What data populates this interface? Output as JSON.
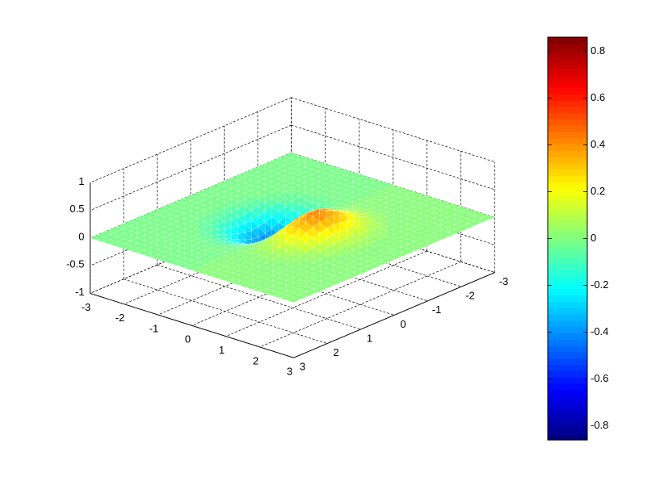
{
  "chart_data": {
    "type": "surface",
    "title": "",
    "xlabel": "",
    "ylabel": "",
    "zlabel": "",
    "function": "z = x * exp(-x^2 - y^2)",
    "x_range": [
      -3,
      3
    ],
    "y_range": [
      -3,
      3
    ],
    "z_range": [
      -1,
      1
    ],
    "grid": true,
    "colormap": "jet",
    "x_ticks": [
      "-3",
      "-2",
      "-1",
      "0",
      "1",
      "2",
      "3"
    ],
    "y_ticks": [
      "-3",
      "-2",
      "-1",
      "0",
      "1",
      "2",
      "3"
    ],
    "z_ticks": [
      "-1",
      "-0.5",
      "0",
      "0.5",
      "1"
    ],
    "colorbar": {
      "range": [
        -0.86,
        0.86
      ],
      "ticks": [
        "-0.8",
        "-0.6",
        "-0.4",
        "-0.2",
        "0",
        "0.2",
        "0.4",
        "0.6",
        "0.8"
      ],
      "tick_values": [
        -0.8,
        -0.6,
        -0.4,
        -0.2,
        0,
        0.2,
        0.4,
        0.6,
        0.8
      ],
      "levels": 64,
      "placement": "right"
    }
  }
}
